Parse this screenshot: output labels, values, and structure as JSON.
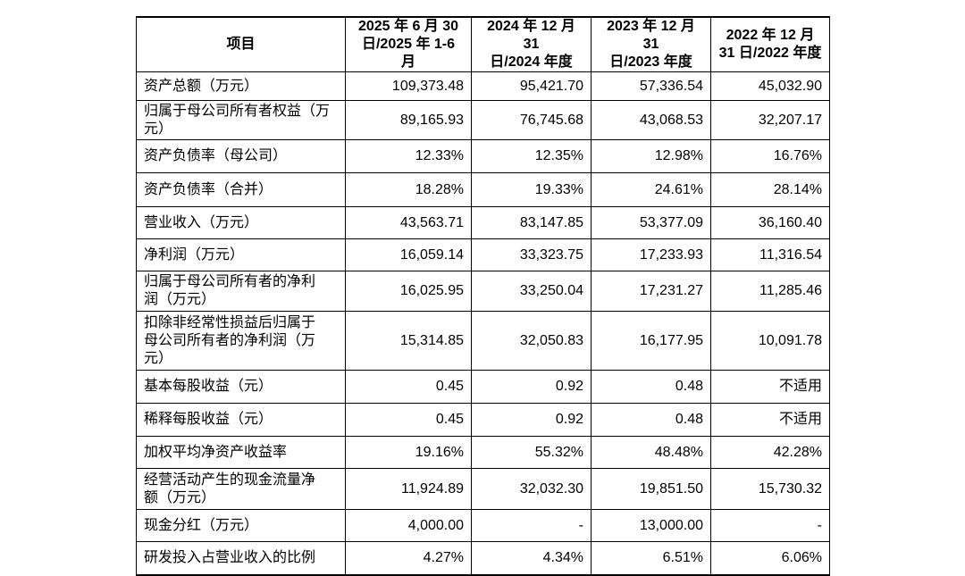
{
  "table": {
    "header": [
      [
        "项目"
      ],
      [
        "2025 年 6 月 30",
        "日/2025 年 1-6 月"
      ],
      [
        "2024 年 12 月 31",
        "日/2024 年度"
      ],
      [
        "2023 年 12 月 31",
        "日/2023 年度"
      ],
      [
        "2022 年 12 月",
        "31 日/2022 年度"
      ]
    ],
    "rows": [
      {
        "label": [
          "资产总额（万元）"
        ],
        "values": [
          "109,373.48",
          "95,421.70",
          "57,336.54",
          "45,032.90"
        ]
      },
      {
        "label": [
          "归属于母公司所有者权益（万",
          "元）"
        ],
        "values": [
          "89,165.93",
          "76,745.68",
          "43,068.53",
          "32,207.17"
        ]
      },
      {
        "label": [
          "资产负债率（母公司）"
        ],
        "values": [
          "12.33%",
          "12.35%",
          "12.98%",
          "16.76%"
        ]
      },
      {
        "label": [
          "资产负债率（合并）"
        ],
        "values": [
          "18.28%",
          "19.33%",
          "24.61%",
          "28.14%"
        ]
      },
      {
        "label": [
          "营业收入（万元）"
        ],
        "values": [
          "43,563.71",
          "83,147.85",
          "53,377.09",
          "36,160.40"
        ]
      },
      {
        "label": [
          "净利润（万元）"
        ],
        "values": [
          "16,059.14",
          "33,323.75",
          "17,233.93",
          "11,316.54"
        ]
      },
      {
        "label": [
          "归属于母公司所有者的净利",
          "润（万元）"
        ],
        "values": [
          "16,025.95",
          "33,250.04",
          "17,231.27",
          "11,285.46"
        ]
      },
      {
        "label": [
          "扣除非经常性损益后归属于",
          "母公司所有者的净利润（万",
          "元）"
        ],
        "values": [
          "15,314.85",
          "32,050.83",
          "16,177.95",
          "10,091.78"
        ]
      },
      {
        "label": [
          "基本每股收益（元）"
        ],
        "values": [
          "0.45",
          "0.92",
          "0.48",
          "不适用"
        ]
      },
      {
        "label": [
          "稀释每股收益（元）"
        ],
        "values": [
          "0.45",
          "0.92",
          "0.48",
          "不适用"
        ]
      },
      {
        "label": [
          "加权平均净资产收益率"
        ],
        "values": [
          "19.16%",
          "55.32%",
          "48.48%",
          "42.28%"
        ]
      },
      {
        "label": [
          "经营活动产生的现金流量净",
          "额（万元）"
        ],
        "values": [
          "11,924.89",
          "32,032.30",
          "19,851.50",
          "15,730.32"
        ]
      },
      {
        "label": [
          "现金分红（万元）"
        ],
        "values": [
          "4,000.00",
          "-",
          "13,000.00",
          "-"
        ]
      },
      {
        "label": [
          "研发投入占营业收入的比例"
        ],
        "values": [
          "4.27%",
          "4.34%",
          "6.51%",
          "6.06%"
        ]
      }
    ]
  }
}
